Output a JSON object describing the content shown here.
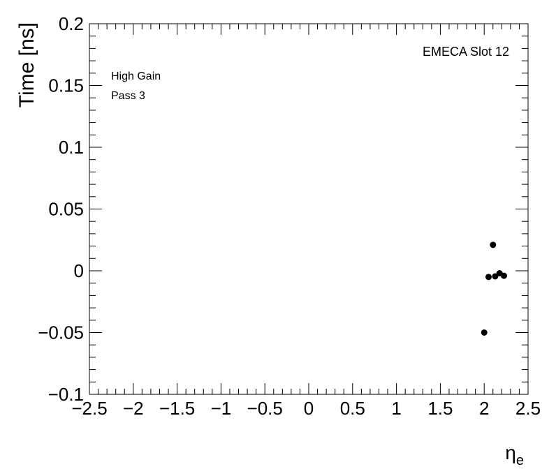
{
  "chart_data": {
    "type": "scatter",
    "xlabel": "η",
    "xlabel_sub": "e",
    "ylabel": "Time [ns]",
    "xlim": [
      -2.5,
      2.5
    ],
    "ylim": [
      -0.1,
      0.2
    ],
    "xticks": [
      -2.5,
      -2,
      -1.5,
      -1,
      -0.5,
      0,
      0.5,
      1,
      1.5,
      2,
      2.5
    ],
    "yticks": [
      -0.1,
      -0.05,
      0,
      0.05,
      0.1,
      0.15,
      0.2
    ],
    "xtick_labels": [
      "−2.5",
      "−2",
      "−1.5",
      "−1",
      "−0.5",
      "0",
      "0.5",
      "1",
      "1.5",
      "2",
      "2.5"
    ],
    "ytick_labels": [
      "−0.1",
      "−0.05",
      "0",
      "0.05",
      "0.1",
      "0.15",
      "0.2"
    ],
    "annotations": [
      "High Gain",
      "Pass 3",
      "EMECA Slot 12"
    ],
    "grid": false,
    "points": [
      {
        "x": 2.0,
        "y": -0.05
      },
      {
        "x": 2.05,
        "y": -0.005
      },
      {
        "x": 2.1,
        "y": 0.021
      },
      {
        "x": 2.125,
        "y": -0.0045
      },
      {
        "x": 2.175,
        "y": -0.002
      },
      {
        "x": 2.225,
        "y": -0.004
      }
    ],
    "marker_color": "#000000"
  }
}
